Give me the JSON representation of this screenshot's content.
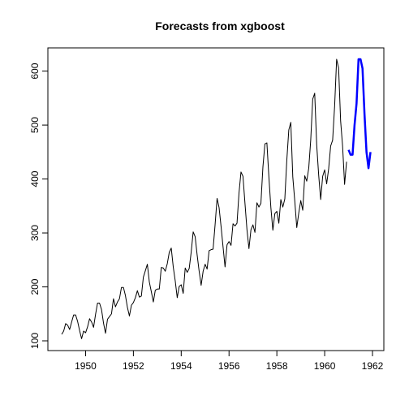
{
  "chart_data": {
    "type": "line",
    "title": "Forecasts from xgboost",
    "xlabel": "",
    "ylabel": "",
    "xlim": [
      1949,
      1962
    ],
    "ylim": [
      100,
      622
    ],
    "x_ticks": [
      1950,
      1952,
      1954,
      1956,
      1958,
      1960,
      1962
    ],
    "y_ticks": [
      100,
      200,
      300,
      400,
      500,
      600
    ],
    "grid": false,
    "legend": "none",
    "series": [
      {
        "role": "observed",
        "color": "#000000",
        "x_start": 1949,
        "x_step": 0.0833333,
        "values": [
          112,
          118,
          132,
          129,
          121,
          135,
          148,
          148,
          136,
          119,
          104,
          118,
          115,
          126,
          141,
          135,
          125,
          149,
          170,
          170,
          158,
          133,
          114,
          140,
          145,
          150,
          178,
          163,
          172,
          178,
          199,
          199,
          184,
          162,
          146,
          166,
          171,
          180,
          193,
          181,
          183,
          218,
          230,
          242,
          209,
          191,
          172,
          194,
          196,
          196,
          236,
          235,
          229,
          243,
          264,
          272,
          237,
          211,
          180,
          201,
          204,
          188,
          235,
          227,
          234,
          264,
          302,
          293,
          259,
          229,
          203,
          229,
          242,
          233,
          267,
          269,
          270,
          315,
          364,
          347,
          312,
          274,
          237,
          278,
          284,
          277,
          317,
          313,
          318,
          374,
          413,
          405,
          355,
          306,
          271,
          306,
          315,
          301,
          356,
          348,
          355,
          422,
          465,
          467,
          404,
          347,
          305,
          336,
          340,
          318,
          362,
          348,
          363,
          435,
          491,
          505,
          404,
          359,
          310,
          337,
          360,
          342,
          406,
          396,
          420,
          472,
          548,
          559,
          463,
          407,
          362,
          405,
          417,
          391,
          419,
          461,
          472,
          535,
          622,
          606,
          508,
          461,
          390,
          432
        ]
      },
      {
        "role": "forecast",
        "color": "#0000ff",
        "x_start": 1961,
        "x_step": 0.0833333,
        "values": [
          454,
          445,
          445,
          500,
          540,
          622,
          622,
          605,
          520,
          450,
          420,
          450
        ]
      }
    ]
  }
}
